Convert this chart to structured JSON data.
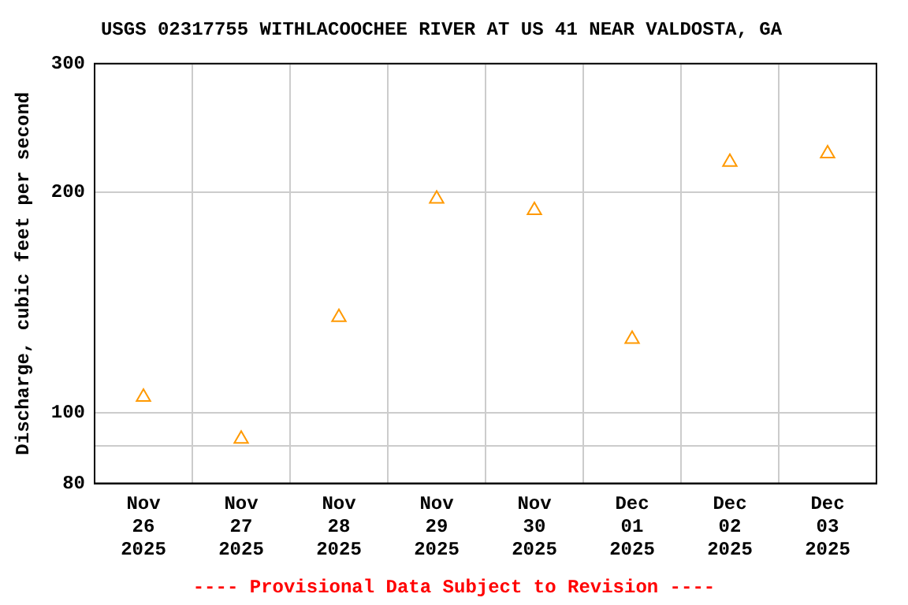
{
  "chart_data": {
    "type": "scatter",
    "title": "USGS 02317755 WITHLACOOCHEE RIVER AT US 41 NEAR VALDOSTA, GA",
    "ylabel": "Discharge, cubic feet per second",
    "categories": [
      "Nov\n26\n2025",
      "Nov\n27\n2025",
      "Nov\n28\n2025",
      "Nov\n29\n2025",
      "Nov\n30\n2025",
      "Dec\n01\n2025",
      "Dec\n02\n2025",
      "Dec\n03\n2025"
    ],
    "series": [
      {
        "color": "#ff9900",
        "values": [
          105,
          92,
          135,
          196,
          189,
          126,
          220,
          226
        ]
      }
    ],
    "log": "y",
    "ylim": [
      80,
      300
    ],
    "yticks": [
      80,
      {
        "value": 90,
        "label": null
      },
      100,
      200,
      300
    ],
    "grid": true,
    "legend": false,
    "marker": "triangle",
    "annotations": [
      "---- Provisional Data Subject to Revision ----"
    ]
  }
}
